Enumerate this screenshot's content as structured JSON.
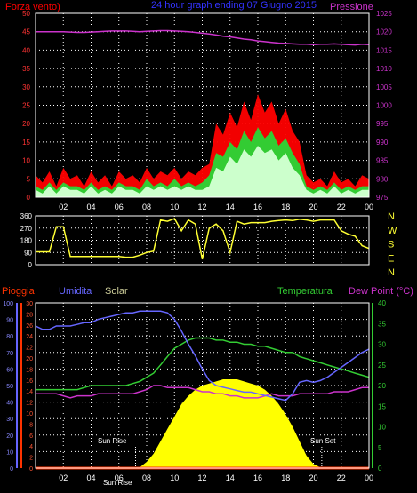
{
  "colors": {
    "background": "#000000",
    "grid": "#ffffff",
    "wind_avg": "#ccffcc",
    "wind_gust_mid": "#33cc33",
    "wind_gust": "#ff0000",
    "pressure": "#cc33cc",
    "direction": "#ffff33",
    "humidity": "#6666ff",
    "temperature": "#33cc33",
    "dew_point": "#cc33cc",
    "solar": "#ffff00",
    "rain": "#ff3300"
  },
  "chart_data": [
    {
      "type": "area",
      "title": "24 hour graph ending 07 Giugno 2015",
      "ylabel_left": "Forza vento)",
      "ylabel_right": "Pressione",
      "x_ticks": [
        "02",
        "04",
        "06",
        "08",
        "10",
        "12",
        "14",
        "16",
        "18",
        "20",
        "22",
        "00"
      ],
      "ylim_left": [
        0,
        50
      ],
      "yticks_left": [
        "0",
        "5",
        "10",
        "15",
        "20",
        "25",
        "30",
        "35",
        "40",
        "45",
        "50"
      ],
      "ylim_right": [
        975,
        1025
      ],
      "yticks_right": [
        "975",
        "980",
        "985",
        "990",
        "995",
        "1000",
        "1005",
        "1010",
        "1015",
        "1020",
        "1025"
      ],
      "grid": true,
      "x_hours": [
        0,
        0.5,
        1,
        1.5,
        2,
        2.5,
        3,
        3.5,
        4,
        4.5,
        5,
        5.5,
        6,
        6.5,
        7,
        7.5,
        8,
        8.5,
        9,
        9.5,
        10,
        10.5,
        11,
        11.5,
        12,
        12.5,
        13,
        13.5,
        14,
        14.5,
        15,
        15.5,
        16,
        16.5,
        17,
        17.5,
        18,
        18.5,
        19,
        19.5,
        20,
        20.5,
        21,
        21.5,
        22,
        22.5,
        23,
        23.5,
        24
      ],
      "series": [
        {
          "name": "gust",
          "values": [
            6,
            4,
            7,
            3,
            8,
            5,
            6,
            3,
            7,
            4,
            6,
            3,
            7,
            5,
            6,
            4,
            8,
            5,
            7,
            6,
            8,
            5,
            7,
            6,
            8,
            9,
            20,
            17,
            23,
            19,
            26,
            21,
            28,
            23,
            26,
            20,
            24,
            18,
            15,
            6,
            4,
            5,
            3,
            7,
            4,
            5,
            3,
            6,
            5
          ]
        },
        {
          "name": "gust_mid",
          "values": [
            3,
            2,
            4,
            2,
            4,
            3,
            3,
            2,
            4,
            2,
            3,
            2,
            4,
            3,
            3,
            2,
            5,
            3,
            4,
            3,
            5,
            3,
            4,
            3,
            4,
            6,
            12,
            11,
            15,
            13,
            18,
            15,
            19,
            16,
            18,
            14,
            16,
            12,
            9,
            3,
            2,
            3,
            2,
            4,
            2,
            3,
            2,
            3,
            3
          ]
        },
        {
          "name": "average",
          "values": [
            2,
            1,
            3,
            1,
            3,
            2,
            2,
            1,
            3,
            1,
            2,
            1,
            3,
            2,
            2,
            1,
            3,
            2,
            3,
            2,
            3,
            2,
            3,
            2,
            2,
            3,
            8,
            7,
            11,
            9,
            13,
            11,
            14,
            12,
            13,
            10,
            12,
            8,
            6,
            2,
            1,
            2,
            1,
            3,
            1,
            2,
            1,
            2,
            2
          ]
        },
        {
          "name": "pressure",
          "values": [
            1020,
            1020,
            1020,
            1020,
            1020,
            1019.9,
            1019.8,
            1019.8,
            1019.9,
            1020,
            1020.1,
            1020.2,
            1020.2,
            1020.2,
            1020.1,
            1020,
            1020.1,
            1020.2,
            1020.3,
            1020.3,
            1020.2,
            1020.1,
            1020,
            1019.8,
            1019.6,
            1019.4,
            1019.1,
            1018.8,
            1018.6,
            1018.3,
            1018,
            1017.8,
            1017.5,
            1017.3,
            1017.1,
            1016.9,
            1016.8,
            1016.7,
            1016.6,
            1016.6,
            1016.5,
            1016.6,
            1016.6,
            1016.7,
            1016.6,
            1016.5,
            1016.4,
            1016.6,
            1016.5
          ]
        }
      ]
    },
    {
      "type": "line",
      "ylabel_right": [
        "N",
        "W",
        "S",
        "E",
        "N"
      ],
      "ylim": [
        0,
        360
      ],
      "yticks": [
        "0",
        "90",
        "180",
        "270",
        "360"
      ],
      "x_hours": [
        0,
        0.5,
        1,
        1.5,
        2,
        2.5,
        3,
        3.5,
        4,
        4.5,
        5,
        5.5,
        6,
        6.5,
        7,
        7.5,
        8,
        8.5,
        9,
        9.5,
        10,
        10.5,
        11,
        11.5,
        12,
        12.5,
        13,
        13.5,
        14,
        14.5,
        15,
        15.5,
        16,
        16.5,
        17,
        17.5,
        18,
        18.5,
        19,
        19.5,
        20,
        20.5,
        21,
        21.5,
        22,
        22.5,
        23,
        23.5,
        24
      ],
      "series": [
        {
          "name": "direction",
          "values": [
            95,
            95,
            95,
            280,
            280,
            60,
            60,
            60,
            60,
            60,
            60,
            60,
            60,
            55,
            55,
            70,
            90,
            100,
            330,
            320,
            340,
            250,
            330,
            300,
            40,
            270,
            300,
            250,
            90,
            320,
            300,
            310,
            310,
            310,
            320,
            325,
            330,
            325,
            335,
            330,
            320,
            330,
            330,
            330,
            250,
            225,
            210,
            140,
            120
          ]
        }
      ]
    },
    {
      "type": "area",
      "labels": {
        "rain": "Pioggia",
        "humidity": "Umidita",
        "solar": "Solar",
        "temperature": "Temperatura",
        "dew_point": "Dew Point (°C)"
      },
      "x_ticks": [
        "02",
        "04",
        "06",
        "08",
        "10",
        "12",
        "14",
        "16",
        "18",
        "20",
        "22",
        "00"
      ],
      "ylim_rain": [
        0,
        30
      ],
      "yticks_rain": [
        "0",
        "2",
        "4",
        "6",
        "8",
        "10",
        "12",
        "14",
        "16",
        "18",
        "20",
        "22",
        "24",
        "26",
        "28",
        "30"
      ],
      "ylim_humidity": [
        0,
        100
      ],
      "yticks_humidity": [
        "0",
        "10",
        "20",
        "30",
        "40",
        "50",
        "60",
        "70",
        "80",
        "90",
        "100"
      ],
      "ylim_temp": [
        0,
        40
      ],
      "yticks_temp": [
        "0",
        "5",
        "10",
        "15",
        "20",
        "25",
        "30",
        "35",
        "40"
      ],
      "annotations": [
        "Sun Rise",
        "Sun Set",
        "Sun Rise"
      ],
      "grid": true,
      "x_hours": [
        0,
        0.5,
        1,
        1.5,
        2,
        2.5,
        3,
        3.5,
        4,
        4.5,
        5,
        5.5,
        6,
        6.5,
        7,
        7.5,
        8,
        8.5,
        9,
        9.5,
        10,
        10.5,
        11,
        11.5,
        12,
        12.5,
        13,
        13.5,
        14,
        14.5,
        15,
        15.5,
        16,
        16.5,
        17,
        17.5,
        18,
        18.5,
        19,
        19.5,
        20,
        20.5,
        21,
        21.5,
        22,
        22.5,
        23,
        23.5,
        24
      ],
      "series": [
        {
          "name": "humidity",
          "values": [
            86,
            84,
            84,
            86,
            86,
            86,
            87,
            88,
            88,
            90,
            91,
            92,
            93,
            94,
            94,
            95,
            95,
            95,
            95,
            94,
            90,
            83,
            75,
            68,
            60,
            53,
            50,
            49,
            48,
            47,
            46,
            46,
            45,
            44,
            43,
            42,
            41,
            45,
            52,
            53,
            52,
            53,
            55,
            58,
            61,
            64,
            67,
            70,
            72
          ]
        },
        {
          "name": "temperature",
          "values": [
            19,
            19,
            19,
            19,
            19,
            19,
            19,
            19.5,
            20,
            20,
            20,
            20,
            20,
            20,
            20.5,
            21,
            22,
            23,
            25,
            27,
            29,
            30,
            31,
            31.5,
            31.5,
            31.5,
            31,
            31,
            30.5,
            30.5,
            30,
            30,
            29.5,
            29.5,
            29,
            28.5,
            28,
            28,
            27,
            26.5,
            26,
            25.5,
            25,
            24.5,
            24,
            23.5,
            23,
            22.5,
            22
          ]
        },
        {
          "name": "dew_point",
          "values": [
            18,
            18,
            18,
            18,
            17.5,
            17,
            17.5,
            17.5,
            17.5,
            18,
            18,
            18,
            18,
            18,
            18,
            18.5,
            19,
            20,
            20,
            19.5,
            19.5,
            19.5,
            19.5,
            19,
            18.5,
            18.5,
            18,
            18,
            17.5,
            17.5,
            17,
            17,
            17,
            17.5,
            18,
            17.5,
            17.5,
            17.5,
            18,
            18,
            18,
            18,
            18,
            18.5,
            18.5,
            18.5,
            19,
            19.5,
            19.5
          ]
        },
        {
          "name": "solar",
          "values": [
            0,
            0,
            0,
            0,
            0,
            0,
            0,
            0,
            0,
            0,
            0,
            0,
            0,
            0,
            0,
            0.2,
            1.5,
            3.5,
            6.5,
            9.5,
            12.5,
            15.5,
            17.5,
            19,
            20,
            20.5,
            21,
            21.5,
            21.5,
            21.5,
            21,
            20.5,
            20,
            19,
            17.5,
            15.5,
            13,
            10,
            6.5,
            3,
            1,
            0.2,
            0,
            0,
            0,
            0,
            0,
            0,
            0
          ]
        },
        {
          "name": "rain",
          "values": [
            0,
            0,
            0,
            0,
            0,
            0,
            0,
            0,
            0,
            0,
            0,
            0,
            0,
            0,
            0,
            0,
            0,
            0,
            0,
            0,
            0,
            0,
            0,
            0,
            0,
            0,
            0,
            0,
            0,
            0,
            0,
            0,
            0,
            0,
            0,
            0,
            0,
            0,
            0,
            0,
            0,
            0,
            0,
            0,
            0,
            0,
            0,
            0,
            0
          ]
        }
      ],
      "sunrise_hour": 7.2,
      "sunset_hour": 20.6
    }
  ]
}
